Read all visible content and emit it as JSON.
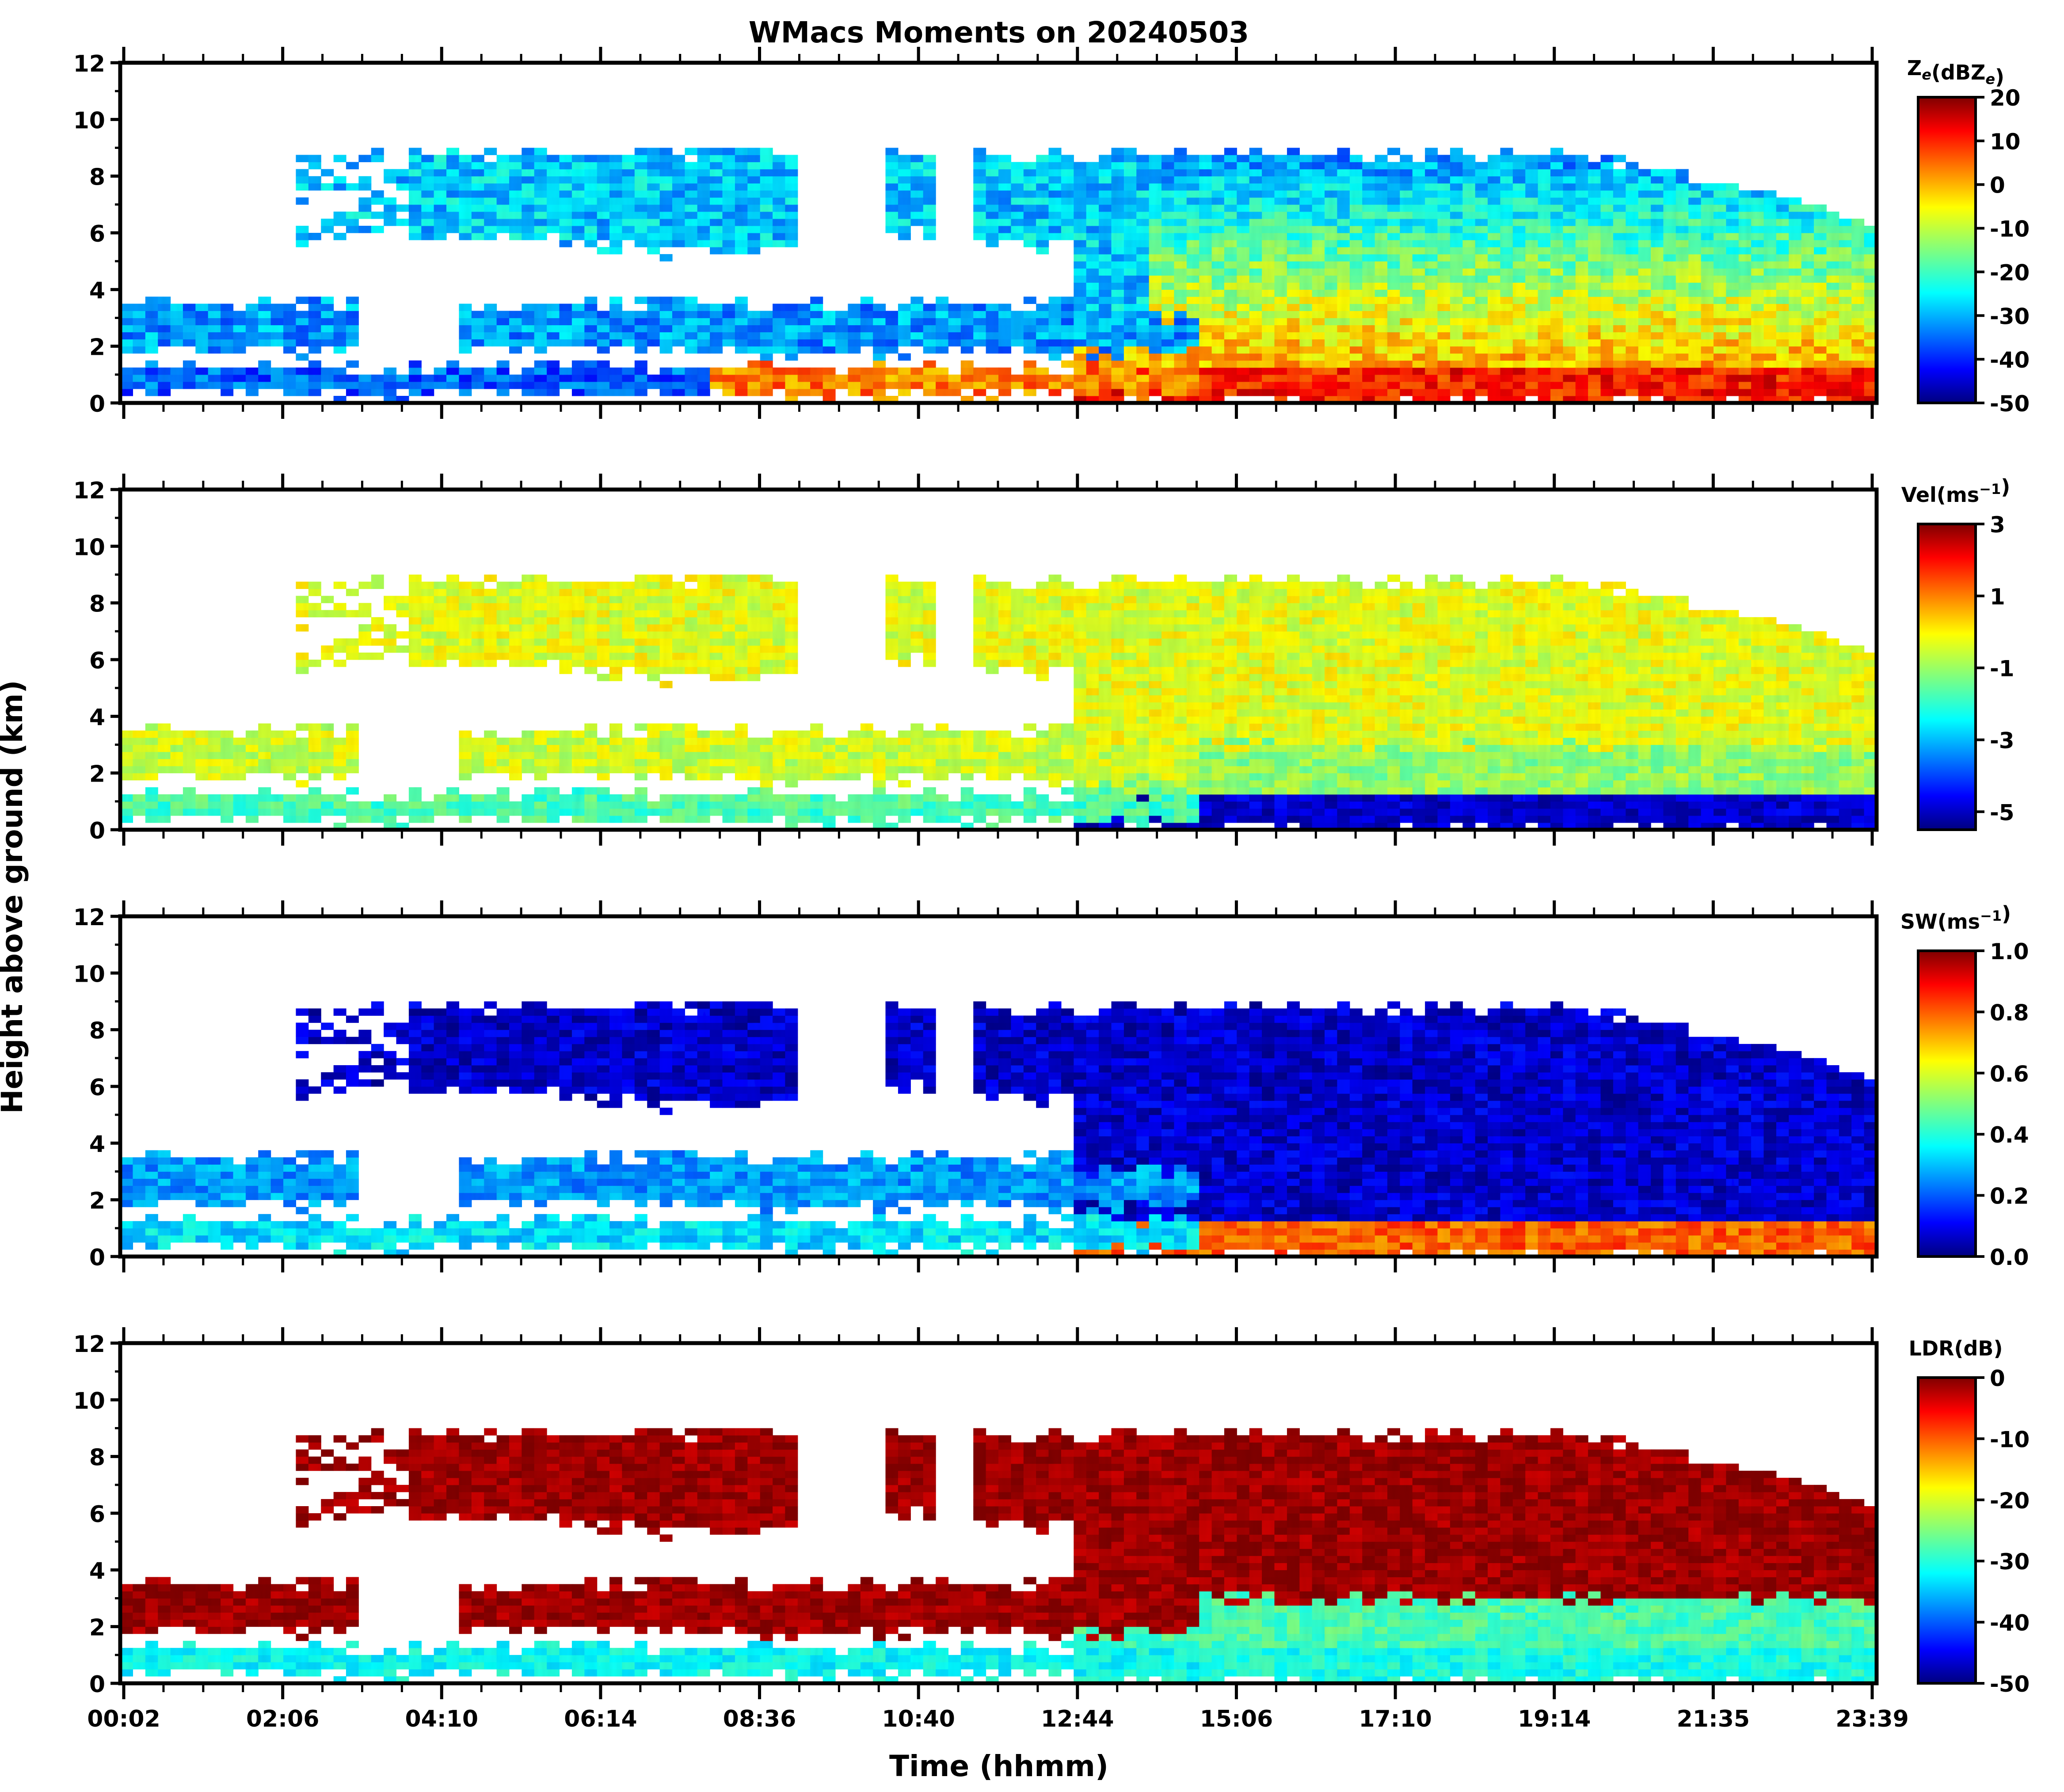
{
  "chart_data": {
    "type": "heatmap",
    "title": "WMacs Moments on 20240503",
    "xlabel": "Time (hhmm)",
    "ylabel": "Height above ground (km)",
    "x_ticks": [
      "00:02",
      "02:06",
      "04:10",
      "06:14",
      "08:36",
      "10:40",
      "12:44",
      "15:06",
      "17:10",
      "19:14",
      "21:35",
      "23:39"
    ],
    "xlim_hours": [
      0.03,
      23.95
    ],
    "y_ticks": [
      "0",
      "2",
      "4",
      "6",
      "8",
      "10",
      "12"
    ],
    "ylim_km": [
      0,
      12
    ],
    "panels": [
      {
        "name": "Ze",
        "colorbar_label": "Z_e(dBZ_e)",
        "clim": [
          -50,
          20
        ],
        "colorbar_ticks": [
          "20",
          "10",
          "0",
          "-10",
          "-20",
          "-30",
          "-40",
          "-50"
        ]
      },
      {
        "name": "Vel",
        "colorbar_label": "Vel(ms^-1)",
        "clim": [
          -5.5,
          3
        ],
        "colorbar_ticks": [
          "3",
          "1",
          "-1",
          "-3",
          "-5"
        ]
      },
      {
        "name": "SW",
        "colorbar_label": "SW(ms^-1)",
        "clim": [
          0,
          1
        ],
        "colorbar_ticks": [
          "1.0",
          "0.8",
          "0.6",
          "0.4",
          "0.2",
          "0.0"
        ]
      },
      {
        "name": "LDR",
        "colorbar_label": "LDR(dB)",
        "clim": [
          -50,
          0
        ],
        "colorbar_ticks": [
          "0",
          "-10",
          "-20",
          "-30",
          "-40",
          "-50"
        ]
      }
    ],
    "colormap": "jet",
    "cloud_layers": [
      {
        "start_h": 2.5,
        "end_h": 23.95,
        "base_km": 4.5,
        "top_km": 8.8,
        "kind": "ice",
        "top_end_km": 6.4
      },
      {
        "start_h": 0.1,
        "end_h": 14.8,
        "base_km": 1.8,
        "top_km": 3.5,
        "kind": "mid"
      },
      {
        "start_h": 0.1,
        "end_h": 14.8,
        "base_km": 0.3,
        "top_km": 1.3,
        "kind": "low"
      },
      {
        "start_h": 13.0,
        "end_h": 23.95,
        "base_km": 0.0,
        "top_km": 6.0,
        "kind": "precip"
      }
    ]
  }
}
